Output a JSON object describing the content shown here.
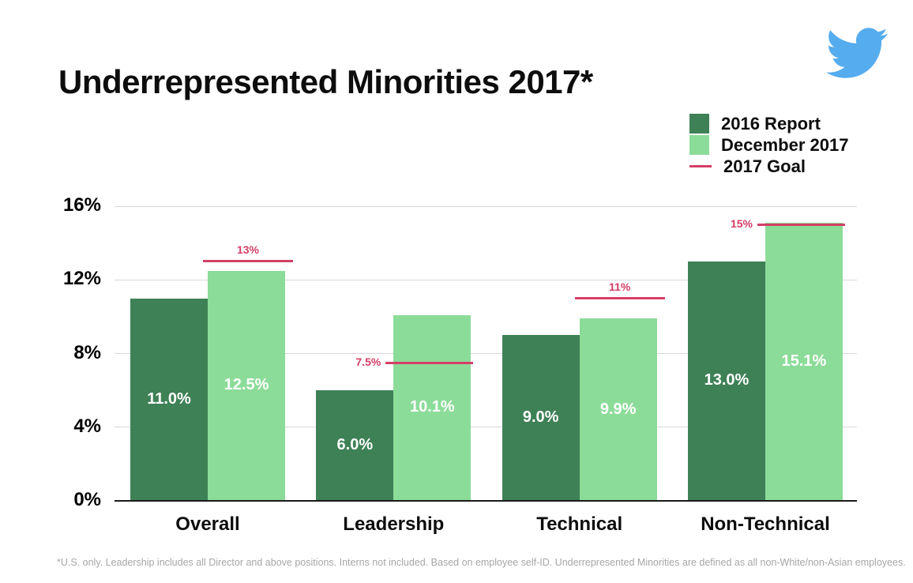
{
  "title": "Underrepresented Minorities 2017*",
  "logo": {
    "name": "twitter-logo",
    "color": "#55acee"
  },
  "legend": {
    "items": [
      {
        "label": "2016 Report",
        "swatch": "square",
        "color": "#3e8156"
      },
      {
        "label": "December 2017",
        "swatch": "square",
        "color": "#8cdc99"
      },
      {
        "label": "2017 Goal",
        "swatch": "line",
        "color": "#d43f66"
      }
    ]
  },
  "chart_data": {
    "type": "bar",
    "title": "Underrepresented Minorities 2017*",
    "categories": [
      "Overall",
      "Leadership",
      "Technical",
      "Non-Technical"
    ],
    "series": [
      {
        "name": "2016 Report",
        "color": "#3e8156",
        "values": [
          11.0,
          6.0,
          9.0,
          13.0
        ],
        "labels": [
          "11.0%",
          "6.0%",
          "9.0%",
          "13.0%"
        ]
      },
      {
        "name": "December 2017",
        "color": "#8cdc99",
        "values": [
          12.5,
          10.1,
          9.9,
          15.1
        ],
        "labels": [
          "12.5%",
          "10.1%",
          "9.9%",
          "15.1%"
        ]
      }
    ],
    "goals": {
      "name": "2017 Goal",
      "color": "#d43f66",
      "values": [
        13,
        7.5,
        11,
        15
      ],
      "labels": [
        "13%",
        "7.5%",
        "11%",
        "15%"
      ],
      "label_positions": [
        "above",
        "left",
        "above",
        "left"
      ]
    },
    "y_axis": {
      "min": 0,
      "max": 16,
      "ticks": [
        0,
        4,
        8,
        12,
        16
      ],
      "tick_labels": [
        "0%",
        "4%",
        "8%",
        "12%",
        "16%"
      ],
      "grid": true
    },
    "legend_position": "top-right",
    "grid_color": "#d8d8d8",
    "baseline_color": "#1a1a1a"
  },
  "footnote": "*U.S. only. Leadership includes all Director and above positions. Interns not included. Based on employee self-ID. Underrepresented Minorities are defined as all non-White/non-Asian employees."
}
